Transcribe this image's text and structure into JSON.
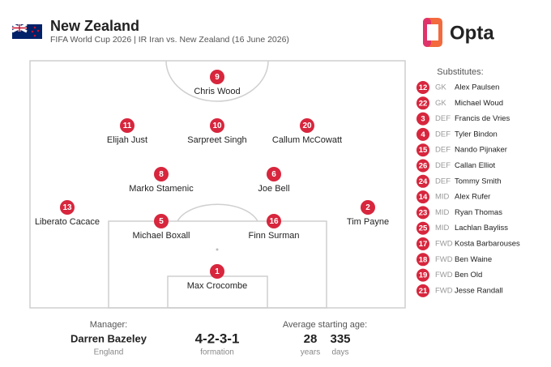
{
  "header": {
    "title": "New Zealand",
    "subtitle": "FIFA World Cup 2026 | IR Iran vs. New Zealand (16 June 2026)",
    "logo": "Opta"
  },
  "players": [
    {
      "number": 9,
      "name": "Chris Wood"
    },
    {
      "number": 11,
      "name": "Elijah Just"
    },
    {
      "number": 10,
      "name": "Sarpreet Singh"
    },
    {
      "number": 20,
      "name": "Callum McCowatt"
    },
    {
      "number": 8,
      "name": "Marko Stamenic"
    },
    {
      "number": 6,
      "name": "Joe Bell"
    },
    {
      "number": 13,
      "name": "Liberato Cacace"
    },
    {
      "number": 5,
      "name": "Michael Boxall"
    },
    {
      "number": 16,
      "name": "Finn Surman"
    },
    {
      "number": 2,
      "name": "Tim Payne"
    },
    {
      "number": 1,
      "name": "Max Crocombe"
    }
  ],
  "substitutes": {
    "title": "Substitutes:",
    "players": [
      {
        "number": 12,
        "position": "GK",
        "name": "Alex Paulsen"
      },
      {
        "number": 22,
        "position": "GK",
        "name": "Michael Woud"
      },
      {
        "number": 3,
        "position": "DEF",
        "name": "Francis de Vries"
      },
      {
        "number": 4,
        "position": "DEF",
        "name": "Tyler Bindon"
      },
      {
        "number": 15,
        "position": "DEF",
        "name": "Nando Pijnaker"
      },
      {
        "number": 26,
        "position": "DEF",
        "name": "Callan Elliot"
      },
      {
        "number": 24,
        "position": "DEF",
        "name": "Tommy Smith"
      },
      {
        "number": 14,
        "position": "MID",
        "name": "Alex Rufer"
      },
      {
        "number": 23,
        "position": "MID",
        "name": "Ryan Thomas"
      },
      {
        "number": 25,
        "position": "MID",
        "name": "Lachlan Bayliss"
      },
      {
        "number": 17,
        "position": "FWD",
        "name": "Kosta Barbarouses"
      },
      {
        "number": 18,
        "position": "FWD",
        "name": "Ben Waine"
      },
      {
        "number": 19,
        "position": "FWD",
        "name": "Ben Old"
      },
      {
        "number": 21,
        "position": "FWD",
        "name": "Jesse Randall"
      }
    ]
  },
  "manager": {
    "label": "Manager:",
    "name": "Darren Bazeley",
    "country": "England"
  },
  "formation": {
    "value": "4-2-3-1",
    "label": "formation"
  },
  "age": {
    "label": "Average starting age:",
    "years": 28,
    "years_label": "years",
    "days": 335,
    "days_label": "days"
  }
}
